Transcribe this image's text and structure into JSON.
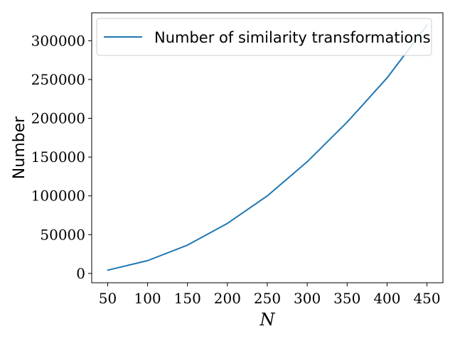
{
  "chart_data": {
    "type": "line",
    "xlabel": "N",
    "ylabel": "Number",
    "x": [
      50,
      100,
      150,
      200,
      250,
      300,
      350,
      400,
      450
    ],
    "series": [
      {
        "name": "Number of similarity transformations",
        "values": [
          4200,
          16500,
          36500,
          64500,
          100000,
          144000,
          195000,
          252000,
          320000
        ],
        "color": "#1f77b4"
      }
    ],
    "xlim": [
      30,
      470
    ],
    "ylim": [
      -12000,
      336000
    ],
    "xticks": [
      50,
      100,
      150,
      200,
      250,
      300,
      350,
      400,
      450
    ],
    "yticks": [
      0,
      50000,
      100000,
      150000,
      200000,
      250000,
      300000
    ],
    "grid": false,
    "legend": "top-left"
  }
}
